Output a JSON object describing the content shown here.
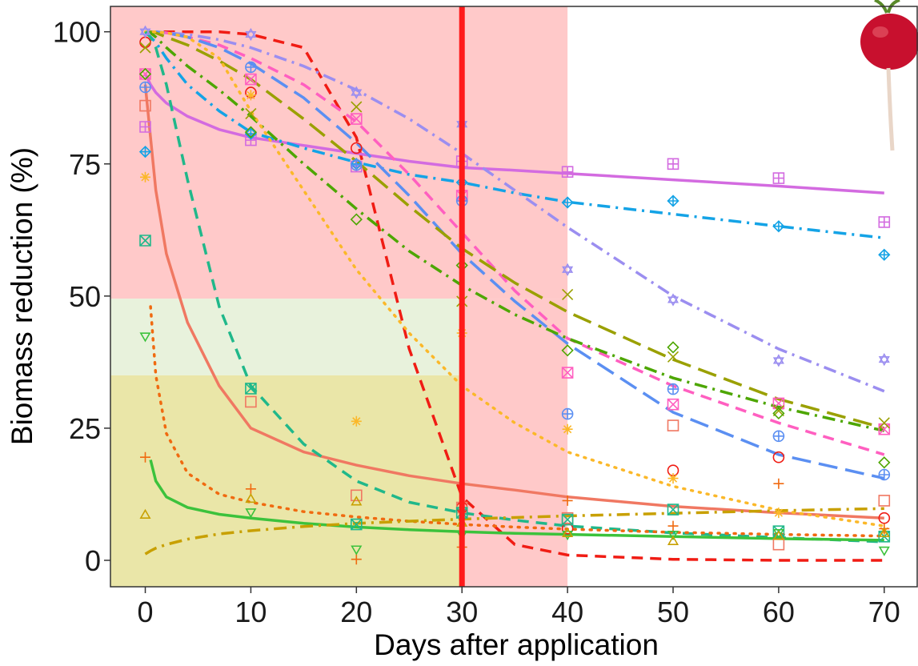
{
  "chart_data": {
    "type": "scatter",
    "x_label": "Days after application",
    "y_label": "Biomass reduction (%)",
    "xlim": [
      -3.3,
      73.2
    ],
    "ylim": [
      -5,
      104.8
    ],
    "xticks": [
      0,
      10,
      20,
      30,
      40,
      50,
      60,
      70
    ],
    "yticks": [
      0,
      25,
      50,
      75,
      100
    ],
    "regions": [
      {
        "x": [
          -3.3,
          40
        ],
        "y": [
          49.5,
          104.8
        ],
        "color": "#ffc9c9"
      },
      {
        "x": [
          30,
          40
        ],
        "y": [
          -5,
          49.5
        ],
        "color": "#ffc9c9"
      },
      {
        "x": [
          -3.3,
          30
        ],
        "y": [
          35,
          49.5
        ],
        "color": "#e8f2dc"
      },
      {
        "x": [
          -3.3,
          30
        ],
        "y": [
          -5,
          35
        ],
        "color": "#eae6a8"
      }
    ],
    "vline": {
      "x": 30,
      "color": "#ff1a1a"
    },
    "x": [
      0,
      10,
      20,
      30,
      40,
      50,
      60,
      70
    ],
    "fit_x": [
      0,
      0.5,
      1,
      2,
      4,
      7,
      10,
      15,
      20,
      25,
      30,
      35,
      40,
      50,
      60,
      70
    ],
    "series": [
      {
        "color": "#f01c14",
        "marker": "circle",
        "dash": "dashed",
        "values": [
          98,
          88.5,
          78,
          10,
          6,
          17,
          19.5,
          8
        ],
        "fit": [
          100,
          100,
          100,
          100,
          100,
          100,
          99.5,
          97,
          80,
          40,
          12,
          3,
          1,
          0.2,
          0,
          0
        ]
      },
      {
        "color": "#f07862",
        "marker": "square",
        "dash": "solid",
        "values": [
          86,
          30,
          12.3,
          10,
          8,
          25.5,
          3,
          11.3
        ],
        "fit": [
          90,
          80,
          70,
          58,
          45,
          33,
          25,
          20.5,
          18,
          16,
          14.5,
          13.3,
          12,
          10.2,
          9,
          8
        ]
      },
      {
        "color": "#d36be0",
        "marker": "square-plus",
        "dash": "solid",
        "values": [
          82,
          79.5,
          74.5,
          75.5,
          73.5,
          75,
          72.3,
          64
        ],
        "fit": [
          92,
          90,
          88.5,
          86.5,
          84,
          81.5,
          80,
          78.5,
          77,
          75.5,
          74.3,
          73.8,
          73.2,
          72,
          70.8,
          69.5
        ]
      },
      {
        "color": "#14a3e6",
        "marker": "diamond-plus",
        "dash": "dashdot",
        "values": [
          77.3,
          80.7,
          75,
          71.5,
          67.7,
          68,
          63.2,
          57.8
        ],
        "fit": [
          100,
          99,
          98,
          95,
          90,
          85,
          81,
          78,
          75.3,
          73,
          71.5,
          69.5,
          67.8,
          65.5,
          63.2,
          61
        ]
      },
      {
        "color": "#9b8ef0",
        "marker": "hexagram",
        "dash": "dashdot",
        "values": [
          100,
          99.5,
          88.5,
          82.5,
          55,
          49.3,
          37.8,
          38
        ],
        "fit": [
          100,
          100,
          100,
          99.8,
          99.5,
          98.5,
          97,
          93.5,
          89,
          83.5,
          77,
          70,
          63,
          50,
          40,
          32
        ]
      },
      {
        "color": "#ff5fc0",
        "marker": "square-x",
        "dash": "dashed",
        "values": [
          92,
          91,
          83.5,
          69,
          35.5,
          29.5,
          29.7,
          24.8
        ],
        "fit": [
          100,
          100,
          100,
          99.8,
          99,
          97.5,
          95,
          90,
          83,
          73,
          62,
          51,
          42,
          33,
          26,
          20
        ]
      },
      {
        "color": "#5b8ff2",
        "marker": "circle-plus",
        "dash": "longdash",
        "values": [
          89.5,
          93.3,
          74.8,
          68,
          27.7,
          32.4,
          23.5,
          16.2
        ],
        "fit": [
          100,
          100,
          100,
          99.8,
          99,
          97,
          94,
          87.5,
          79,
          69,
          58,
          49,
          41,
          28,
          20,
          15.5
        ]
      },
      {
        "color": "#9aa000",
        "marker": "x",
        "dash": "longdash",
        "values": [
          97,
          84.5,
          85.8,
          49,
          50.3,
          38.5,
          28.3,
          26
        ],
        "fit": [
          100,
          100,
          99.8,
          99,
          97.5,
          94.5,
          91,
          83.5,
          75.5,
          67,
          59,
          52.5,
          47,
          38,
          30.5,
          25
        ]
      },
      {
        "color": "#4da600",
        "marker": "diamond",
        "dash": "dashdot",
        "values": [
          92,
          81,
          64.5,
          55.8,
          39.7,
          40.3,
          27.8,
          18.5
        ],
        "fit": [
          100,
          99.8,
          99,
          97,
          93.5,
          89,
          84,
          75,
          66.5,
          58.5,
          52,
          46.5,
          42,
          34.5,
          29,
          24.5
        ]
      },
      {
        "color": "#fbb829",
        "marker": "asterisk",
        "dash": "dotted",
        "values": [
          72.5,
          88,
          26.3,
          43,
          24.8,
          15.5,
          9,
          5.5
        ],
        "fit": [
          100,
          100,
          100,
          99.8,
          99,
          95,
          85,
          70,
          55,
          43,
          33,
          26,
          20.5,
          14,
          9.5,
          6.5
        ]
      },
      {
        "color": "#20b88a",
        "marker": "square-x",
        "dash": "dashed",
        "values": [
          60.5,
          32.5,
          6.8,
          9,
          7.7,
          9.6,
          5.5,
          4.5
        ],
        "fit": [
          100,
          99,
          97,
          90,
          72,
          48,
          33,
          22,
          15,
          11,
          9,
          7.6,
          6.5,
          5.2,
          4.3,
          3.5
        ]
      },
      {
        "color": "#f06a10",
        "marker": "plus",
        "dash": "dotted",
        "values": [
          19.5,
          13.5,
          0.2,
          2.5,
          11.3,
          6.5,
          14.5,
          6
        ],
        "fit": [
          null,
          48,
          35,
          24,
          16.5,
          12.5,
          11,
          9.2,
          8.2,
          7.4,
          6.8,
          6.3,
          5.9,
          5.3,
          4.9,
          4.6
        ]
      },
      {
        "color": "#3cc23c",
        "marker": "triangle-down",
        "dash": "solid",
        "values": [
          42.5,
          9.2,
          2.2,
          5,
          5,
          5,
          5.3,
          2
        ],
        "fit": [
          null,
          19,
          15,
          12,
          10,
          8.7,
          8,
          7,
          6.3,
          5.8,
          5.4,
          5.1,
          4.9,
          4.5,
          4.1,
          3.8
        ]
      },
      {
        "color": "#c8a000",
        "marker": "triangle-up",
        "dash": "dashdot",
        "values": [
          8.5,
          11.5,
          11,
          7,
          5,
          3.5,
          4.5,
          5
        ],
        "fit": [
          1.2,
          1.8,
          2.3,
          3,
          4,
          5,
          5.6,
          6.4,
          7,
          7.4,
          7.8,
          8.1,
          8.4,
          8.9,
          9.4,
          9.8
        ]
      }
    ]
  }
}
